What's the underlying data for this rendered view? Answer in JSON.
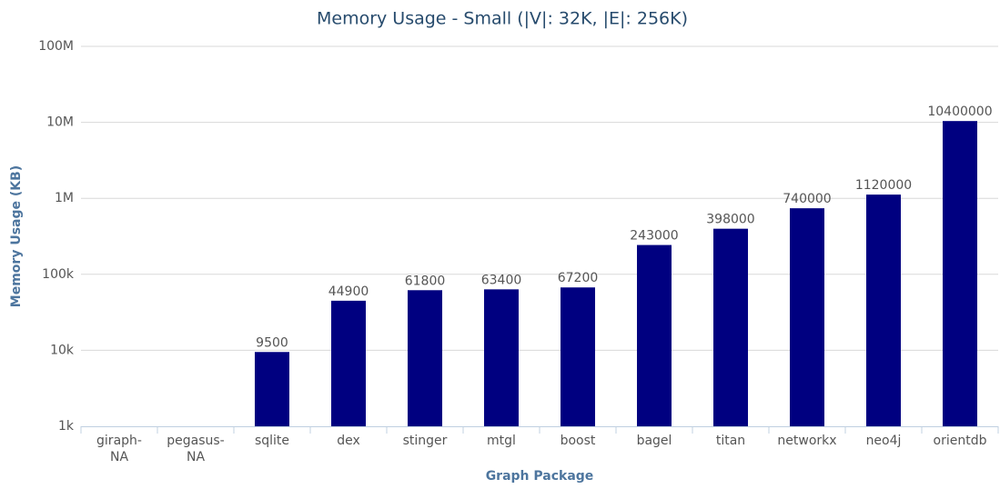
{
  "chart_data": {
    "type": "bar",
    "title": "Memory Usage - Small (|V|: 32K, |E|: 256K)",
    "x_label": "Graph Package",
    "y_label": "Memory Usage (KB)",
    "categories": [
      "giraph-NA",
      "pegasus-NA",
      "sqlite",
      "dex",
      "stinger",
      "mtgl",
      "boost",
      "bagel",
      "titan",
      "networkx",
      "neo4j",
      "orientdb"
    ],
    "values": [
      null,
      null,
      9500,
      44900,
      61800,
      63400,
      67200,
      243000,
      398000,
      740000,
      1120000,
      10400000
    ],
    "color": "#000080",
    "log_scale": true,
    "grid": true,
    "ylim": [
      1000,
      100000000
    ],
    "yticks": [
      {
        "value": 1000,
        "label": "1k"
      },
      {
        "value": 10000,
        "label": "10k"
      },
      {
        "value": 100000,
        "label": "100k"
      },
      {
        "value": 1000000,
        "label": "1M"
      },
      {
        "value": 10000000,
        "label": "10M"
      },
      {
        "value": 100000000,
        "label": "100M"
      }
    ]
  }
}
